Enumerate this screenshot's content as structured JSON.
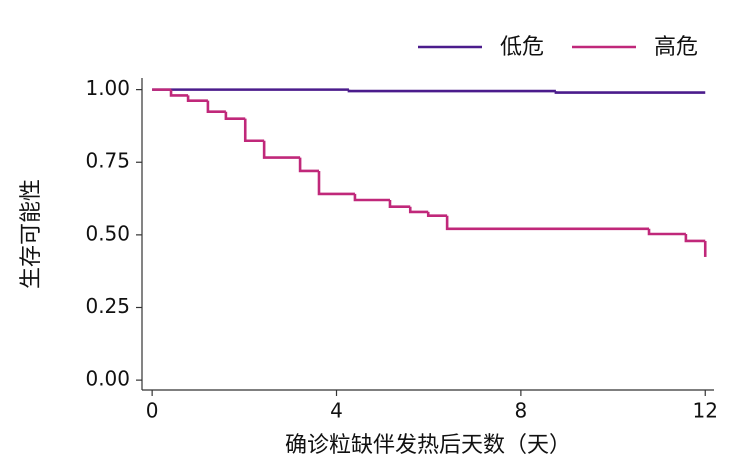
{
  "chart_data": {
    "type": "step",
    "x_label": "确诊粒缺伴发热后天数（天）",
    "y_label": "生存可能性",
    "xlim": [
      -0.22,
      12.19
    ],
    "ylim": [
      -0.034,
      1.04
    ],
    "xticks": [
      0,
      4,
      8,
      12
    ],
    "yticks": [
      {
        "value": 0,
        "label": "0.00"
      },
      {
        "value": 0.25,
        "label": "0.25"
      },
      {
        "value": 0.5,
        "label": "0.50"
      },
      {
        "value": 0.75,
        "label": "0.75"
      },
      {
        "value": 1,
        "label": "1.00"
      }
    ],
    "legend": "top-right",
    "series": [
      {
        "name": "低危",
        "color": "#4b1c8c",
        "x": [
          0,
          4.27,
          8.76,
          12
        ],
        "values": [
          1.0,
          0.995,
          0.99,
          0.99
        ]
      },
      {
        "name": "高危",
        "color": "#c0287a",
        "x": [
          0,
          0.41,
          0.78,
          1.21,
          1.6,
          2.02,
          2.43,
          3.21,
          3.62,
          4.4,
          5.16,
          5.6,
          5.99,
          6.4,
          10.78,
          11.58,
          12
        ],
        "values": [
          1.0,
          0.98,
          0.962,
          0.924,
          0.9,
          0.824,
          0.766,
          0.72,
          0.641,
          0.62,
          0.597,
          0.579,
          0.566,
          0.521,
          0.503,
          0.479,
          0.424
        ]
      }
    ]
  }
}
